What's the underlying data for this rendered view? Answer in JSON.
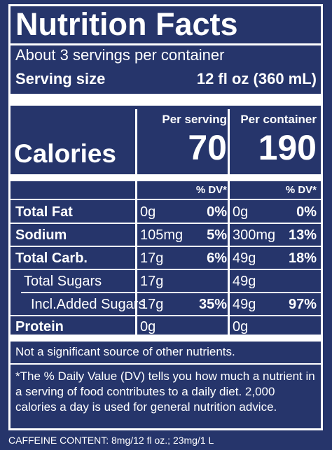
{
  "title": "Nutrition Facts",
  "servings_per_container": "About 3 servings per container",
  "serving_size_label": "Serving size",
  "serving_size_value": "12 fl oz (360 mL)",
  "column_headers": {
    "per_serving": "Per serving",
    "per_container": "Per container"
  },
  "calories": {
    "label": "Calories",
    "per_serving": "70",
    "per_container": "190"
  },
  "dv_header": "% DV*",
  "rows": [
    {
      "label": "Total Fat",
      "bold": true,
      "serving_amount": "0g",
      "serving_dv": "0%",
      "container_amount": "0g",
      "container_dv": "0%"
    },
    {
      "label": "Sodium",
      "bold": true,
      "serving_amount": "105mg",
      "serving_dv": "5%",
      "container_amount": "300mg",
      "container_dv": "13%"
    },
    {
      "label": "Total Carb.",
      "bold": true,
      "serving_amount": "17g",
      "serving_dv": "6%",
      "container_amount": "49g",
      "container_dv": "18%"
    },
    {
      "label": "Total Sugars",
      "bold": false,
      "serving_amount": "17g",
      "serving_dv": "",
      "container_amount": "49g",
      "container_dv": ""
    },
    {
      "label": "Incl.Added Sugars",
      "bold": false,
      "serving_amount": "17g",
      "serving_dv": "35%",
      "container_amount": "49g",
      "container_dv": "97%"
    },
    {
      "label": "Protein",
      "bold": true,
      "serving_amount": "0g",
      "serving_dv": "",
      "container_amount": "0g",
      "container_dv": ""
    }
  ],
  "not_significant": "Not a significant source of other nutrients.",
  "dv_footnote": "*The % Daily Value (DV) tells you how much a nutrient in a serving of food contributes to a daily diet. 2,000 calories a day is used for general nutrition advice.",
  "caffeine": "CAFFEINE CONTENT: 8mg/12 fl oz.; 23mg/1 L",
  "colors": {
    "background": "#26356b",
    "foreground": "#ffffff"
  }
}
